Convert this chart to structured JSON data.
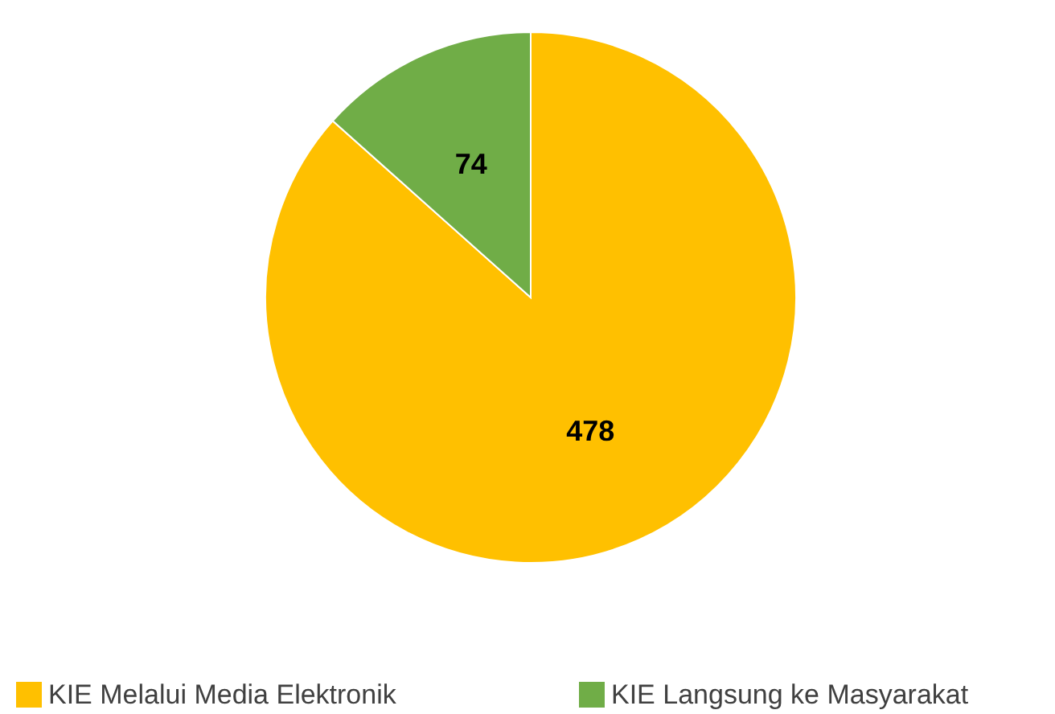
{
  "chart_data": {
    "type": "pie",
    "categories": [
      "KIE Melalui Media Elektronik",
      "KIE Langsung ke Masyarakat"
    ],
    "values": [
      478,
      74
    ],
    "colors": [
      "#ffc000",
      "#70ad47"
    ],
    "data_labels": true,
    "legend": "bottom"
  }
}
